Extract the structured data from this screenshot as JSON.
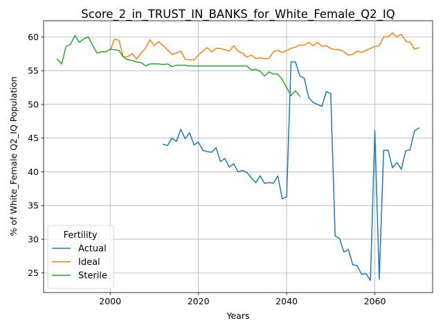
{
  "chart_data": {
    "type": "line",
    "title": "Score_2_in_TRUST_IN_BANKS_for_White_Female_Q2_IQ",
    "xlabel": "Years",
    "ylabel": "% of White_Female Q2_IQ Population",
    "xlim": [
      1984.9,
      2073.1
    ],
    "ylim": [
      22.1,
      62.4
    ],
    "xticks": [
      2000,
      2020,
      2040,
      2060
    ],
    "yticks": [
      25,
      30,
      35,
      40,
      45,
      50,
      55,
      60
    ],
    "grid": true,
    "legend": {
      "title": "Fertility",
      "placement": "lower-left"
    },
    "series": [
      {
        "name": "Actual",
        "color": "#1f77b4",
        "x": [
          2012,
          2013,
          2014,
          2015,
          2016,
          2017,
          2018,
          2019,
          2020,
          2021,
          2022,
          2023,
          2024,
          2025,
          2026,
          2027,
          2028,
          2029,
          2030,
          2031,
          2032,
          2033,
          2034,
          2035,
          2036,
          2037,
          2038,
          2039,
          2040,
          2041,
          2042,
          2043,
          2044,
          2045,
          2046,
          2047,
          2048,
          2049,
          2050,
          2051,
          2052,
          2053,
          2054,
          2055,
          2056,
          2057,
          2058,
          2059,
          2060,
          2061,
          2062,
          2063,
          2064,
          2065,
          2066,
          2067,
          2068,
          2069,
          2070
        ],
        "y": [
          44.1,
          43.9,
          45.0,
          44.5,
          46.3,
          44.9,
          45.8,
          44.0,
          44.4,
          43.2,
          43.0,
          42.9,
          43.6,
          41.5,
          42.0,
          40.7,
          41.2,
          40.0,
          40.2,
          39.9,
          39.1,
          38.4,
          39.4,
          38.3,
          38.4,
          38.3,
          39.4,
          36.0,
          36.3,
          56.3,
          56.3,
          54.2,
          53.9,
          51.0,
          50.3,
          50.0,
          49.7,
          51.9,
          51.6,
          30.5,
          30.1,
          28.1,
          28.5,
          26.2,
          26.1,
          24.8,
          24.9,
          23.9,
          46.1,
          24.1,
          43.2,
          43.2,
          40.6,
          41.4,
          40.4,
          43.1,
          43.3,
          46.1,
          46.5
        ]
      },
      {
        "name": "Ideal",
        "color": "#ff7f0e",
        "x": [
          2000,
          2001,
          2002,
          2003,
          2004,
          2005,
          2006,
          2007,
          2008,
          2009,
          2010,
          2011,
          2012,
          2013,
          2014,
          2015,
          2016,
          2017,
          2018,
          2019,
          2020,
          2021,
          2022,
          2023,
          2024,
          2025,
          2026,
          2027,
          2028,
          2029,
          2030,
          2031,
          2032,
          2033,
          2034,
          2035,
          2036,
          2037,
          2038,
          2039,
          2040,
          2041,
          2042,
          2043,
          2044,
          2045,
          2046,
          2047,
          2048,
          2049,
          2050,
          2051,
          2052,
          2053,
          2054,
          2055,
          2056,
          2057,
          2058,
          2059,
          2060,
          2061,
          2062,
          2063,
          2064,
          2065,
          2066,
          2067,
          2068,
          2069,
          2070
        ],
        "y": [
          58.0,
          59.7,
          59.5,
          57.0,
          57.1,
          57.5,
          56.7,
          57.6,
          58.3,
          59.6,
          58.7,
          59.3,
          58.7,
          58.1,
          57.4,
          57.6,
          57.9,
          56.7,
          56.6,
          56.6,
          57.3,
          57.9,
          58.4,
          57.8,
          58.3,
          58.3,
          58.1,
          57.9,
          58.7,
          57.9,
          57.6,
          57.0,
          57.3,
          56.8,
          56.9,
          56.8,
          56.8,
          57.8,
          58.0,
          57.7,
          58.0,
          58.3,
          58.5,
          58.8,
          58.8,
          59.2,
          58.7,
          59.2,
          58.6,
          58.7,
          58.3,
          58.1,
          58.1,
          57.8,
          57.3,
          57.4,
          57.9,
          57.7,
          58.0,
          58.3,
          58.6,
          58.7,
          60.0,
          60.0,
          60.6,
          60.0,
          60.4,
          59.4,
          59.2,
          58.2,
          58.4
        ]
      },
      {
        "name": "Sterile",
        "color": "#2ca02c",
        "x": [
          1988,
          1989,
          1990,
          1991,
          1992,
          1993,
          1994,
          1995,
          1996,
          1997,
          1998,
          1999,
          2000,
          2001,
          2002,
          2003,
          2004,
          2005,
          2006,
          2007,
          2008,
          2009,
          2010,
          2011,
          2012,
          2013,
          2014,
          2015,
          2016,
          2017,
          2018,
          2019,
          2020,
          2021,
          2022,
          2023,
          2024,
          2025,
          2026,
          2027,
          2028,
          2029,
          2030,
          2031,
          2032,
          2033,
          2034,
          2035,
          2036,
          2037,
          2038,
          2039,
          2040,
          2041,
          2042,
          2043
        ],
        "y": [
          56.7,
          56.0,
          58.6,
          58.9,
          60.2,
          59.2,
          59.7,
          60.0,
          58.8,
          57.6,
          57.8,
          57.8,
          58.2,
          58.1,
          58.0,
          57.0,
          56.6,
          56.5,
          56.3,
          56.2,
          55.7,
          56.0,
          56.0,
          56.0,
          55.9,
          56.0,
          55.6,
          55.8,
          55.8,
          55.8,
          55.7,
          55.7,
          55.7,
          55.7,
          55.7,
          55.7,
          55.7,
          55.7,
          55.7,
          55.7,
          55.7,
          55.7,
          55.7,
          55.7,
          55.1,
          55.2,
          54.9,
          54.2,
          54.8,
          54.5,
          54.5,
          53.7,
          52.5,
          51.3,
          52.0,
          51.2
        ]
      }
    ]
  }
}
